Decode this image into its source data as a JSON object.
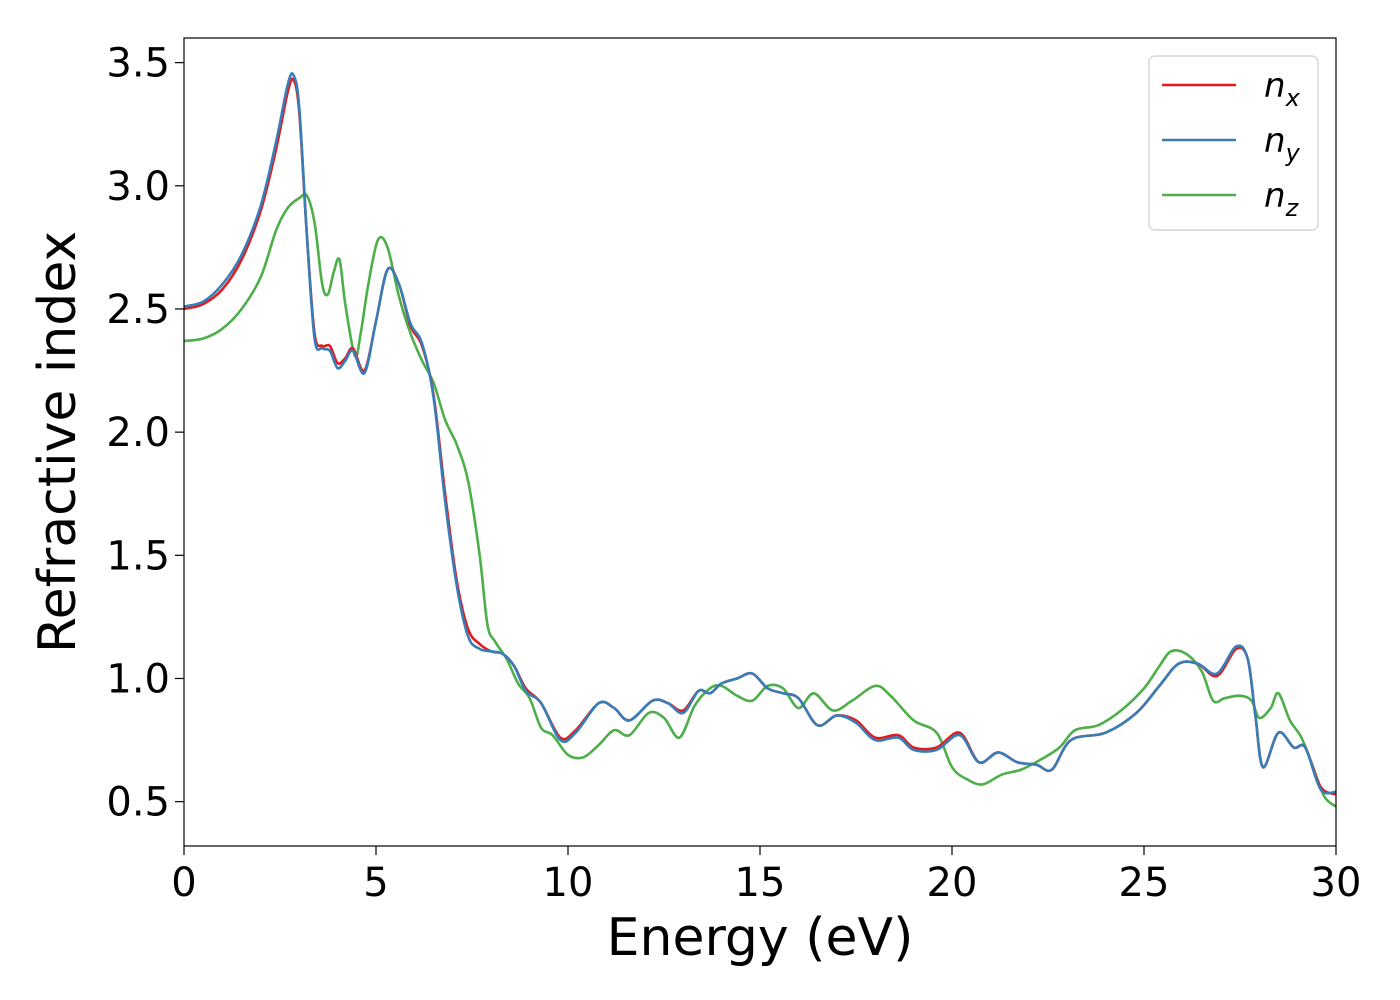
{
  "chart_data": {
    "type": "line",
    "xlabel": "Energy (eV)",
    "ylabel": "Refractive index",
    "xlim": [
      0,
      30
    ],
    "ylim": [
      0.32,
      3.6
    ],
    "xticks": [
      0,
      5,
      10,
      15,
      20,
      25,
      30
    ],
    "yticks": [
      0.5,
      1.0,
      1.5,
      2.0,
      2.5,
      3.0,
      3.5
    ],
    "xtick_labels": [
      "0",
      "5",
      "10",
      "15",
      "20",
      "25",
      "30"
    ],
    "ytick_labels": [
      "0.5",
      "1.0",
      "1.5",
      "2.0",
      "2.5",
      "3.0",
      "3.5"
    ],
    "grid": false,
    "legend_position": "top-right",
    "series": [
      {
        "name": "n",
        "subscript": "x",
        "color": "#e41a1c",
        "points": [
          [
            0,
            2.5
          ],
          [
            0.5,
            2.52
          ],
          [
            1.0,
            2.58
          ],
          [
            1.5,
            2.7
          ],
          [
            2.0,
            2.9
          ],
          [
            2.4,
            3.15
          ],
          [
            2.7,
            3.38
          ],
          [
            2.85,
            3.43
          ],
          [
            3.0,
            3.3
          ],
          [
            3.2,
            2.8
          ],
          [
            3.4,
            2.4
          ],
          [
            3.6,
            2.35
          ],
          [
            3.8,
            2.35
          ],
          [
            4.0,
            2.28
          ],
          [
            4.2,
            2.3
          ],
          [
            4.4,
            2.34
          ],
          [
            4.7,
            2.25
          ],
          [
            5.0,
            2.45
          ],
          [
            5.3,
            2.66
          ],
          [
            5.6,
            2.6
          ],
          [
            5.9,
            2.43
          ],
          [
            6.2,
            2.35
          ],
          [
            6.5,
            2.15
          ],
          [
            6.8,
            1.75
          ],
          [
            7.1,
            1.4
          ],
          [
            7.4,
            1.2
          ],
          [
            7.7,
            1.14
          ],
          [
            8.0,
            1.11
          ],
          [
            8.3,
            1.1
          ],
          [
            8.6,
            1.05
          ],
          [
            8.9,
            0.96
          ],
          [
            9.3,
            0.9
          ],
          [
            9.8,
            0.76
          ],
          [
            10.2,
            0.79
          ],
          [
            10.8,
            0.9
          ],
          [
            11.2,
            0.88
          ],
          [
            11.6,
            0.83
          ],
          [
            12.2,
            0.91
          ],
          [
            12.6,
            0.9
          ],
          [
            13.0,
            0.87
          ],
          [
            13.4,
            0.95
          ],
          [
            13.7,
            0.94
          ],
          [
            14.0,
            0.98
          ],
          [
            14.4,
            1.0
          ],
          [
            14.8,
            1.02
          ],
          [
            15.2,
            0.96
          ],
          [
            15.6,
            0.94
          ],
          [
            16.0,
            0.92
          ],
          [
            16.5,
            0.81
          ],
          [
            17.0,
            0.85
          ],
          [
            17.5,
            0.83
          ],
          [
            18.0,
            0.76
          ],
          [
            18.6,
            0.77
          ],
          [
            19.0,
            0.72
          ],
          [
            19.6,
            0.72
          ],
          [
            20.2,
            0.78
          ],
          [
            20.7,
            0.66
          ],
          [
            21.2,
            0.7
          ],
          [
            21.7,
            0.66
          ],
          [
            22.2,
            0.65
          ],
          [
            22.6,
            0.63
          ],
          [
            23.1,
            0.75
          ],
          [
            24.0,
            0.78
          ],
          [
            24.8,
            0.86
          ],
          [
            25.4,
            0.97
          ],
          [
            25.9,
            1.06
          ],
          [
            26.4,
            1.06
          ],
          [
            26.9,
            1.01
          ],
          [
            27.4,
            1.12
          ],
          [
            27.7,
            1.08
          ],
          [
            27.9,
            0.85
          ],
          [
            28.1,
            0.64
          ],
          [
            28.5,
            0.78
          ],
          [
            28.9,
            0.72
          ],
          [
            29.2,
            0.72
          ],
          [
            29.6,
            0.56
          ],
          [
            30.0,
            0.53
          ]
        ]
      },
      {
        "name": "n",
        "subscript": "y",
        "color": "#377eb8",
        "points": [
          [
            0,
            2.51
          ],
          [
            0.5,
            2.53
          ],
          [
            1.0,
            2.6
          ],
          [
            1.5,
            2.72
          ],
          [
            2.0,
            2.92
          ],
          [
            2.4,
            3.18
          ],
          [
            2.7,
            3.41
          ],
          [
            2.85,
            3.45
          ],
          [
            3.0,
            3.32
          ],
          [
            3.2,
            2.8
          ],
          [
            3.4,
            2.38
          ],
          [
            3.6,
            2.34
          ],
          [
            3.8,
            2.33
          ],
          [
            4.0,
            2.26
          ],
          [
            4.2,
            2.29
          ],
          [
            4.4,
            2.33
          ],
          [
            4.7,
            2.24
          ],
          [
            5.0,
            2.45
          ],
          [
            5.3,
            2.66
          ],
          [
            5.6,
            2.6
          ],
          [
            5.9,
            2.44
          ],
          [
            6.2,
            2.36
          ],
          [
            6.5,
            2.14
          ],
          [
            6.8,
            1.72
          ],
          [
            7.1,
            1.38
          ],
          [
            7.4,
            1.17
          ],
          [
            7.7,
            1.12
          ],
          [
            8.0,
            1.11
          ],
          [
            8.3,
            1.1
          ],
          [
            8.6,
            1.05
          ],
          [
            8.9,
            0.95
          ],
          [
            9.3,
            0.9
          ],
          [
            9.8,
            0.75
          ],
          [
            10.2,
            0.78
          ],
          [
            10.8,
            0.9
          ],
          [
            11.2,
            0.88
          ],
          [
            11.6,
            0.83
          ],
          [
            12.2,
            0.91
          ],
          [
            12.6,
            0.9
          ],
          [
            13.0,
            0.86
          ],
          [
            13.4,
            0.95
          ],
          [
            13.7,
            0.94
          ],
          [
            14.0,
            0.98
          ],
          [
            14.4,
            1.0
          ],
          [
            14.8,
            1.02
          ],
          [
            15.2,
            0.96
          ],
          [
            15.6,
            0.94
          ],
          [
            16.0,
            0.92
          ],
          [
            16.5,
            0.81
          ],
          [
            17.0,
            0.85
          ],
          [
            17.5,
            0.82
          ],
          [
            18.0,
            0.75
          ],
          [
            18.6,
            0.76
          ],
          [
            19.0,
            0.71
          ],
          [
            19.6,
            0.71
          ],
          [
            20.2,
            0.77
          ],
          [
            20.7,
            0.66
          ],
          [
            21.2,
            0.7
          ],
          [
            21.7,
            0.66
          ],
          [
            22.2,
            0.65
          ],
          [
            22.6,
            0.63
          ],
          [
            23.1,
            0.75
          ],
          [
            24.0,
            0.78
          ],
          [
            24.8,
            0.86
          ],
          [
            25.4,
            0.97
          ],
          [
            25.9,
            1.06
          ],
          [
            26.4,
            1.06
          ],
          [
            26.9,
            1.02
          ],
          [
            27.4,
            1.13
          ],
          [
            27.7,
            1.08
          ],
          [
            27.9,
            0.85
          ],
          [
            28.1,
            0.64
          ],
          [
            28.5,
            0.78
          ],
          [
            28.9,
            0.72
          ],
          [
            29.2,
            0.72
          ],
          [
            29.6,
            0.55
          ],
          [
            30.0,
            0.54
          ]
        ]
      },
      {
        "name": "n",
        "subscript": "z",
        "color": "#4daf4a",
        "points": [
          [
            0,
            2.37
          ],
          [
            0.5,
            2.38
          ],
          [
            1.0,
            2.42
          ],
          [
            1.5,
            2.5
          ],
          [
            2.0,
            2.63
          ],
          [
            2.4,
            2.82
          ],
          [
            2.7,
            2.91
          ],
          [
            3.0,
            2.95
          ],
          [
            3.2,
            2.96
          ],
          [
            3.4,
            2.85
          ],
          [
            3.6,
            2.6
          ],
          [
            3.75,
            2.56
          ],
          [
            3.9,
            2.65
          ],
          [
            4.05,
            2.7
          ],
          [
            4.2,
            2.52
          ],
          [
            4.45,
            2.31
          ],
          [
            4.6,
            2.4
          ],
          [
            4.8,
            2.6
          ],
          [
            5.05,
            2.78
          ],
          [
            5.3,
            2.75
          ],
          [
            5.6,
            2.55
          ],
          [
            5.9,
            2.4
          ],
          [
            6.2,
            2.29
          ],
          [
            6.5,
            2.2
          ],
          [
            6.8,
            2.05
          ],
          [
            7.1,
            1.95
          ],
          [
            7.4,
            1.8
          ],
          [
            7.7,
            1.5
          ],
          [
            7.9,
            1.22
          ],
          [
            8.1,
            1.15
          ],
          [
            8.4,
            1.08
          ],
          [
            8.7,
            0.98
          ],
          [
            9.0,
            0.92
          ],
          [
            9.3,
            0.8
          ],
          [
            9.6,
            0.77
          ],
          [
            10.0,
            0.69
          ],
          [
            10.4,
            0.68
          ],
          [
            10.8,
            0.73
          ],
          [
            11.2,
            0.79
          ],
          [
            11.6,
            0.77
          ],
          [
            12.1,
            0.86
          ],
          [
            12.5,
            0.84
          ],
          [
            12.9,
            0.76
          ],
          [
            13.3,
            0.89
          ],
          [
            13.7,
            0.96
          ],
          [
            14.0,
            0.97
          ],
          [
            14.4,
            0.93
          ],
          [
            14.8,
            0.91
          ],
          [
            15.2,
            0.97
          ],
          [
            15.6,
            0.96
          ],
          [
            16.0,
            0.88
          ],
          [
            16.4,
            0.94
          ],
          [
            16.9,
            0.87
          ],
          [
            17.4,
            0.91
          ],
          [
            18.0,
            0.97
          ],
          [
            18.4,
            0.93
          ],
          [
            19.0,
            0.83
          ],
          [
            19.6,
            0.78
          ],
          [
            20.0,
            0.64
          ],
          [
            20.4,
            0.59
          ],
          [
            20.8,
            0.57
          ],
          [
            21.3,
            0.61
          ],
          [
            21.8,
            0.63
          ],
          [
            22.3,
            0.67
          ],
          [
            22.8,
            0.72
          ],
          [
            23.2,
            0.79
          ],
          [
            23.8,
            0.81
          ],
          [
            24.4,
            0.87
          ],
          [
            25.0,
            0.96
          ],
          [
            25.4,
            1.05
          ],
          [
            25.7,
            1.11
          ],
          [
            26.1,
            1.1
          ],
          [
            26.5,
            1.03
          ],
          [
            26.8,
            0.91
          ],
          [
            27.1,
            0.92
          ],
          [
            27.5,
            0.93
          ],
          [
            27.8,
            0.91
          ],
          [
            28.0,
            0.84
          ],
          [
            28.3,
            0.88
          ],
          [
            28.5,
            0.94
          ],
          [
            28.8,
            0.83
          ],
          [
            29.1,
            0.76
          ],
          [
            29.4,
            0.64
          ],
          [
            29.7,
            0.52
          ],
          [
            30.0,
            0.48
          ]
        ]
      }
    ]
  }
}
